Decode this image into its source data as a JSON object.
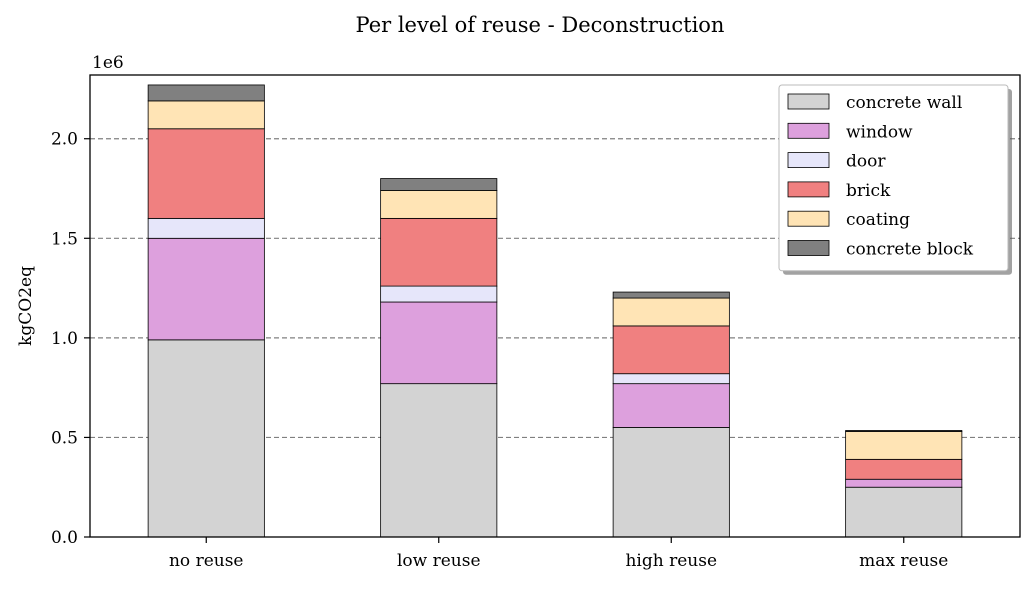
{
  "chart_data": {
    "type": "bar",
    "stacked": true,
    "title": "Per level of reuse - Deconstruction",
    "xlabel": "",
    "ylabel": "kgCO2eq",
    "y_offset_label": "1e6",
    "y_scale": 1000000,
    "categories": [
      "no reuse",
      "low reuse",
      "high reuse",
      "max reuse"
    ],
    "ylim": [
      0,
      2.32
    ],
    "yticks": [
      0.0,
      0.5,
      1.0,
      1.5,
      2.0
    ],
    "ytick_labels": [
      "0.0",
      "0.5",
      "1.0",
      "1.5",
      "2.0"
    ],
    "grid": "horizontal dashed at major ticks",
    "legend_position": "upper right",
    "series": [
      {
        "name": "concrete wall",
        "color": "#d3d3d3",
        "values": [
          0.99,
          0.77,
          0.55,
          0.25
        ]
      },
      {
        "name": "window",
        "color": "#dda0dd",
        "values": [
          0.51,
          0.41,
          0.22,
          0.04
        ]
      },
      {
        "name": "door",
        "color": "#e6e6fa",
        "values": [
          0.1,
          0.08,
          0.05,
          0.0
        ]
      },
      {
        "name": "brick",
        "color": "#f08080",
        "values": [
          0.45,
          0.34,
          0.24,
          0.1
        ]
      },
      {
        "name": "coating",
        "color": "#ffe4b5",
        "values": [
          0.14,
          0.14,
          0.14,
          0.14
        ]
      },
      {
        "name": "concrete block",
        "color": "#808080",
        "values": [
          0.08,
          0.06,
          0.03,
          0.005
        ]
      }
    ]
  }
}
